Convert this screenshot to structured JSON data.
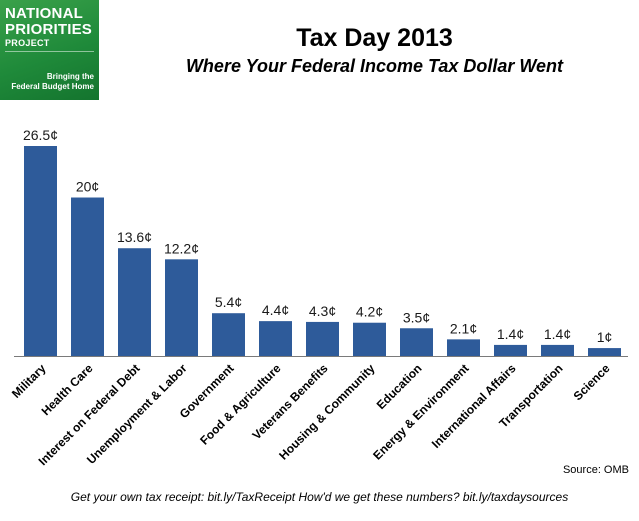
{
  "logo": {
    "line1": "NATIONAL",
    "line2": "PRIORITIES",
    "line3": "PROJECT",
    "tagline1": "Bringing the",
    "tagline2": "Federal Budget Home",
    "color": "#2b9444"
  },
  "chart_data": {
    "type": "bar",
    "title": "Tax Day 2013",
    "subtitle": "Where Your Federal Income Tax Dollar Went",
    "categories": [
      "Military",
      "Health Care",
      "Interest on Federal Debt",
      "Unemployment & Labor",
      "Government",
      "Food & Agriculture",
      "Veterans Benefits",
      "Housing & Community",
      "Education",
      "Energy & Environment",
      "International Affairs",
      "Transportation",
      "Science"
    ],
    "values": [
      26.5,
      20,
      13.6,
      12.2,
      5.4,
      4.4,
      4.3,
      4.2,
      3.5,
      2.1,
      1.4,
      1.4,
      1
    ],
    "data_labels": [
      "26.5¢",
      "20¢",
      "13.6¢",
      "12.2¢",
      "5.4¢",
      "4.4¢",
      "4.3¢",
      "4.2¢",
      "3.5¢",
      "2.1¢",
      "1.4¢",
      "1.4¢",
      "1¢"
    ],
    "unit": "¢",
    "ylim": [
      0,
      26.5
    ],
    "grid": false,
    "bar_color": "#2e5b9a"
  },
  "source": "Source: OMB",
  "footer": "Get your own tax receipt:  bit.ly/TaxReceipt  How'd  we get these numbers? bit.ly/taxdaysources"
}
